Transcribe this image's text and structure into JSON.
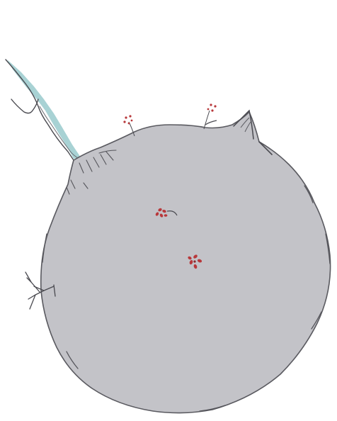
{
  "illustration": {
    "background_color": "#ffffff",
    "planet_color": "#c3c3c8",
    "ink_color": "#4a4a50",
    "stream_color": "#a8d2d4",
    "flower_color": "#b8383b",
    "elements": [
      "planet",
      "stream",
      "ridge-peak",
      "bare-twig",
      "small-flower",
      "red-flower"
    ]
  }
}
